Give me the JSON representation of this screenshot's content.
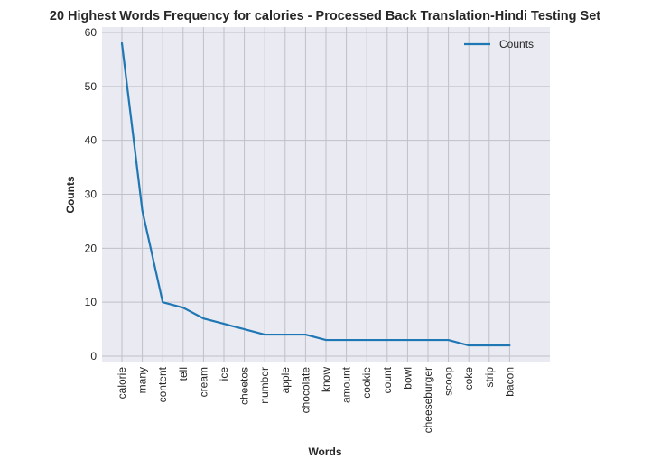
{
  "chart_data": {
    "type": "line",
    "title": "20 Highest Words Frequency for calories - Processed Back Translation-Hindi Testing Set",
    "xlabel": "Words",
    "ylabel": "Counts",
    "categories": [
      "calorie",
      "many",
      "content",
      "tell",
      "cream",
      "ice",
      "cheetos",
      "number",
      "apple",
      "chocolate",
      "know",
      "amount",
      "cookie",
      "count",
      "bowl",
      "cheeseburger",
      "scoop",
      "coke",
      "strip",
      "bacon"
    ],
    "series": [
      {
        "name": "Counts",
        "values": [
          58,
          27,
          10,
          9,
          7,
          6,
          5,
          4,
          4,
          4,
          3,
          3,
          3,
          3,
          3,
          3,
          3,
          2,
          2,
          2
        ]
      }
    ],
    "ylim": [
      -1,
      61
    ],
    "yticks": [
      0,
      10,
      20,
      30,
      40,
      50,
      60
    ],
    "grid": true,
    "legend": "top-right",
    "colors": {
      "line": "#1f77b4",
      "plot_bg": "#eaeaf2",
      "grid": "#c0c0c8"
    }
  }
}
